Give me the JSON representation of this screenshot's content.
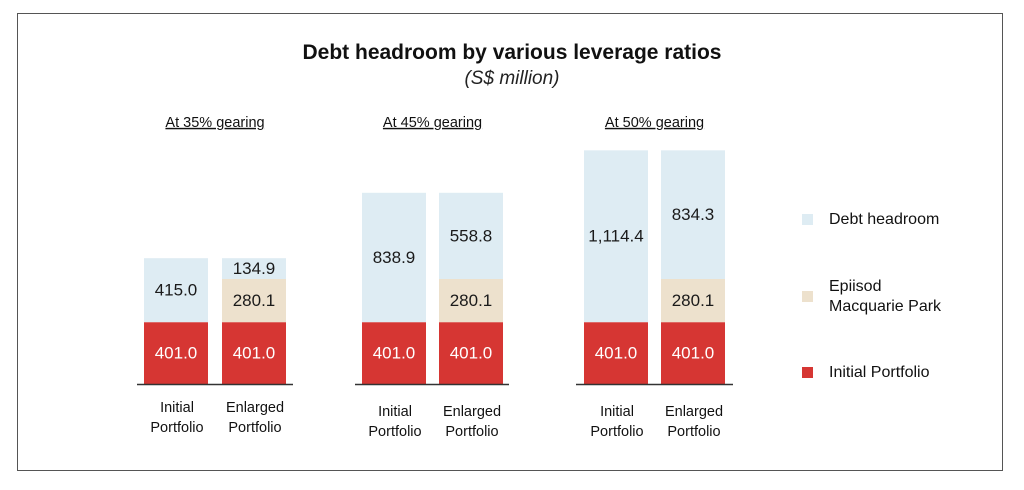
{
  "title": "Debt headroom by various leverage ratios",
  "subtitle": "(S$ million)",
  "chart_data": {
    "type": "bar",
    "stacked": true,
    "groups": [
      {
        "title": "At 35% gearing",
        "bars": [
          {
            "label": [
              "Initial",
              "Portfolio"
            ],
            "initial": 401.0,
            "epiisod": 0,
            "headroom": 415.0,
            "labels": {
              "initial": "401.0",
              "epiisod": "",
              "headroom": "415.0"
            }
          },
          {
            "label": [
              "Enlarged",
              "Portfolio"
            ],
            "initial": 401.0,
            "epiisod": 280.1,
            "headroom": 134.9,
            "labels": {
              "initial": "401.0",
              "epiisod": "280.1",
              "headroom": "134.9"
            }
          }
        ]
      },
      {
        "title": "At 45% gearing",
        "bars": [
          {
            "label": [
              "Initial",
              "Portfolio"
            ],
            "initial": 401.0,
            "epiisod": 0,
            "headroom": 838.9,
            "labels": {
              "initial": "401.0",
              "epiisod": "",
              "headroom": "838.9"
            }
          },
          {
            "label": [
              "Enlarged",
              "Portfolio"
            ],
            "initial": 401.0,
            "epiisod": 280.1,
            "headroom": 558.8,
            "labels": {
              "initial": "401.0",
              "epiisod": "280.1",
              "headroom": "558.8"
            }
          }
        ]
      },
      {
        "title": "At 50% gearing",
        "bars": [
          {
            "label": [
              "Initial",
              "Portfolio"
            ],
            "initial": 401.0,
            "epiisod": 0,
            "headroom": 1114.4,
            "labels": {
              "initial": "401.0",
              "epiisod": "",
              "headroom": "1,114.4"
            }
          },
          {
            "label": [
              "Enlarged",
              "Portfolio"
            ],
            "initial": 401.0,
            "epiisod": 280.1,
            "headroom": 834.3,
            "labels": {
              "initial": "401.0",
              "epiisod": "280.1",
              "headroom": "834.3"
            }
          }
        ]
      }
    ],
    "series": [
      {
        "key": "headroom",
        "name": [
          "Debt headroom"
        ],
        "color": "#deecf3"
      },
      {
        "key": "epiisod",
        "name": [
          "Epiisod",
          "Macquarie Park"
        ],
        "color": "#ede1cd"
      },
      {
        "key": "initial",
        "name": [
          "Initial Portfolio"
        ],
        "color": "#d63633"
      }
    ],
    "legend_position": "right",
    "grid": false
  }
}
